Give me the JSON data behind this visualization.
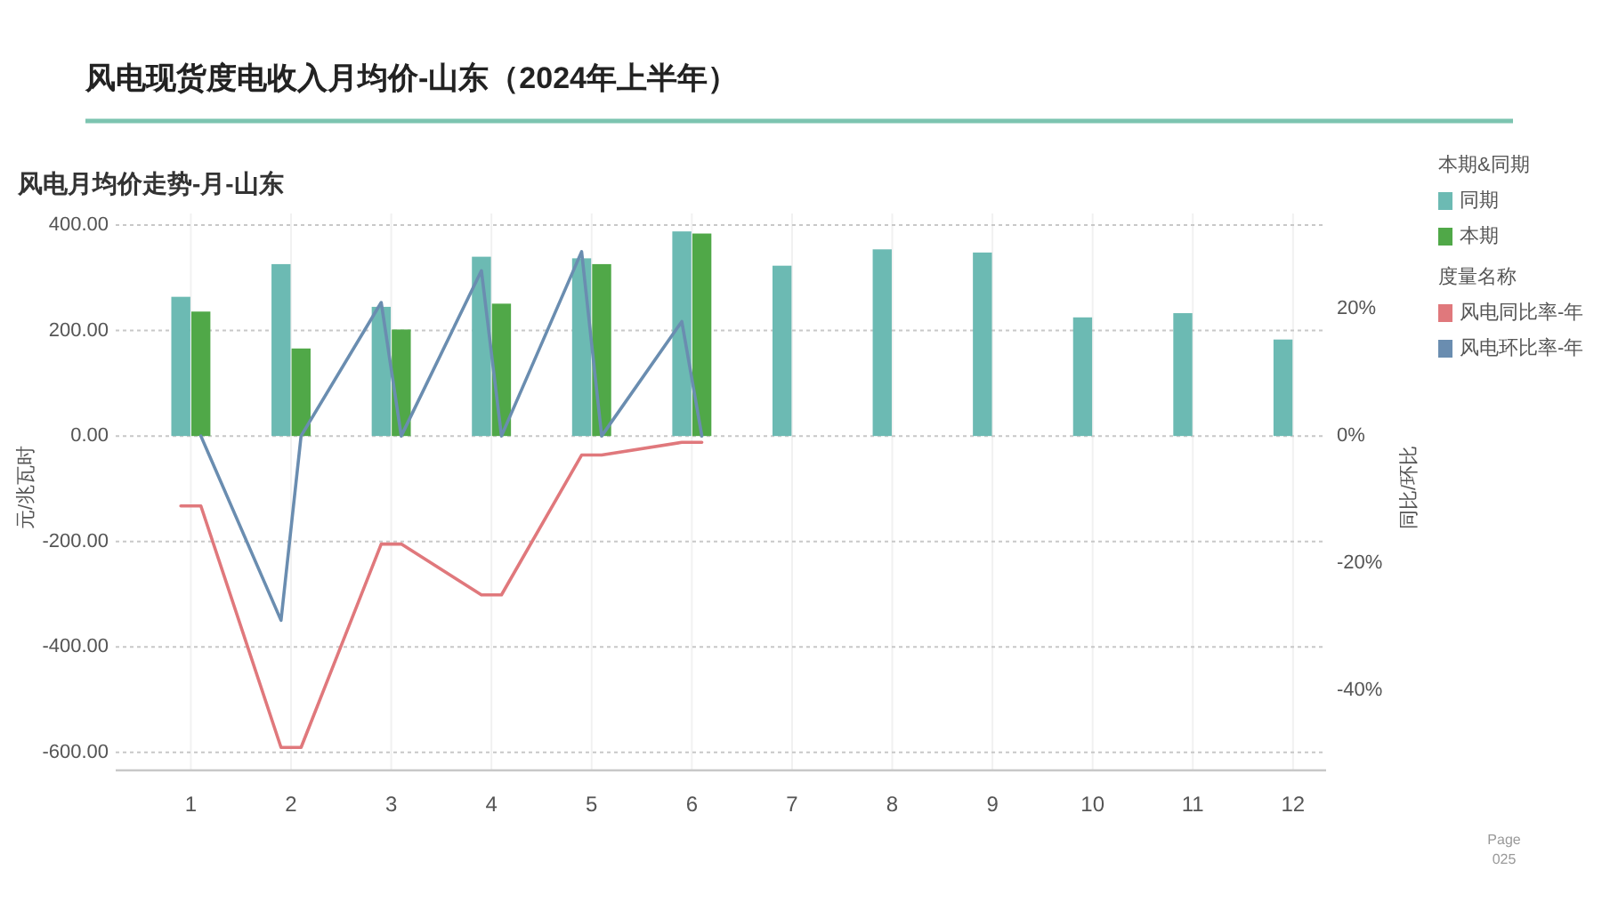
{
  "chart_data": {
    "type": "bar",
    "title": "风电现货度电收入月均价-山东（2024年上半年）",
    "subtitle": "风电月均价走势-月-山东",
    "ylabel": "元/兆瓦时",
    "y2label": "同比/环比",
    "legend_title": [
      "本期&同期",
      "度量名称"
    ],
    "x": [
      1,
      2,
      3,
      4,
      5,
      6,
      7,
      8,
      9,
      10,
      11,
      12
    ],
    "xlim": [
      0.25,
      12.33
    ],
    "xticks": [
      1,
      2,
      3,
      4,
      5,
      6,
      7,
      8,
      9,
      10,
      11,
      12
    ],
    "ylim": [
      -634,
      422
    ],
    "yticks": [
      {
        "value": -600,
        "label": "-600.00"
      },
      {
        "value": -400,
        "label": "-400.00"
      },
      {
        "value": -200,
        "label": "-200.00"
      },
      {
        "value": 0,
        "label": "0.00"
      },
      {
        "value": 200,
        "label": "200.00"
      },
      {
        "value": 400,
        "label": "400.00"
      }
    ],
    "y2lim": [
      -52.6,
      35
    ],
    "y2ticks": [
      {
        "value": -40,
        "label": "-40%"
      },
      {
        "value": -20,
        "label": "-20%"
      },
      {
        "value": 0,
        "label": "0%"
      },
      {
        "value": 20,
        "label": "20%"
      }
    ],
    "grid": true,
    "legend": "top right",
    "series": [
      {
        "name": "同期",
        "color": "#6cbab3",
        "values": [
          264,
          326,
          245,
          340,
          337,
          388,
          323,
          354,
          348,
          225,
          233,
          183
        ]
      },
      {
        "name": "本期",
        "color": "#50a848",
        "values": [
          236,
          166,
          202,
          251,
          326,
          384,
          null,
          null,
          null,
          null,
          null,
          null
        ]
      },
      {
        "name": "风电同比率-年",
        "type": "line",
        "axis": "y2",
        "color": "#e0787c",
        "x": [
          0.9,
          1.1,
          1.9,
          2.1,
          2.9,
          3.1,
          3.9,
          4.1,
          4.9,
          5.1,
          5.9,
          6.1
        ],
        "values": [
          -11,
          -11,
          -49,
          -49,
          -17,
          -17,
          -25,
          -25,
          -3,
          -3,
          -1,
          -1
        ]
      },
      {
        "name": "风电环比率-年",
        "type": "line",
        "axis": "y2",
        "color": "#6a8db0",
        "x": [
          1.1,
          1.9,
          2.1,
          2.9,
          3.1,
          3.9,
          4.1,
          4.9,
          5.1,
          5.9,
          6.1
        ],
        "values": [
          0,
          -29,
          0,
          21,
          0,
          26,
          0,
          29,
          0,
          18,
          0
        ]
      }
    ],
    "annotations": [
      "Page",
      "025"
    ]
  }
}
